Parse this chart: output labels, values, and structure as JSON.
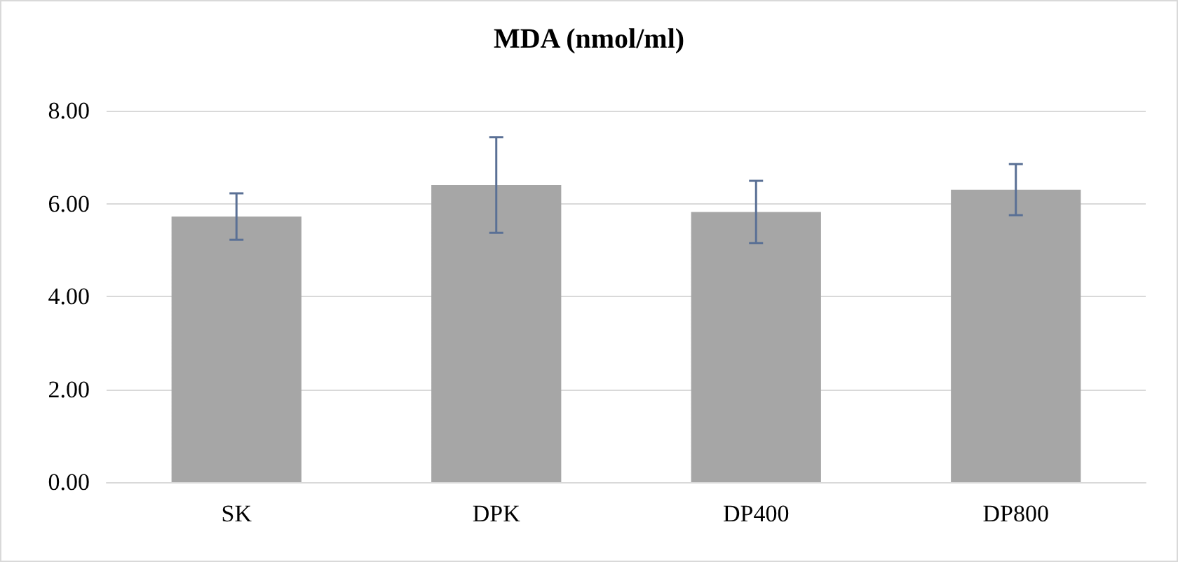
{
  "chart_data": {
    "type": "bar",
    "title": "MDA (nmol/ml)",
    "categories": [
      "SK",
      "DPK",
      "DP400",
      "DP800"
    ],
    "values": [
      5.72,
      6.4,
      5.82,
      6.3
    ],
    "color": "#a6a6a6",
    "errors": [
      0.5,
      1.03,
      0.67,
      0.55
    ],
    "ylim": [
      0,
      8
    ],
    "yticks": [
      {
        "value": 0,
        "label": "0.00"
      },
      {
        "value": 2,
        "label": "2.00"
      },
      {
        "value": 4,
        "label": "4.00"
      },
      {
        "value": 6,
        "label": "6.00"
      },
      {
        "value": 8,
        "label": "8.00"
      }
    ],
    "grid": "y"
  }
}
